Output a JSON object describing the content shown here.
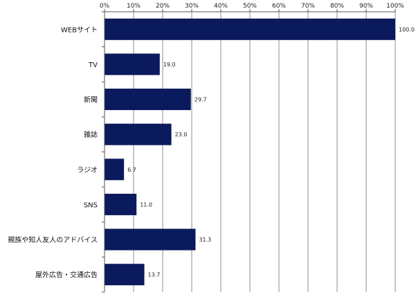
{
  "chart_data": {
    "type": "bar",
    "orientation": "horizontal",
    "categories": [
      "WEBサイト",
      "TV",
      "新聞",
      "雑誌",
      "ラジオ",
      "SNS",
      "親族や知人友人のアドバイス",
      "屋外広告・交通広告"
    ],
    "values": [
      100.0,
      19.0,
      29.7,
      23.0,
      6.7,
      11.0,
      31.3,
      13.7
    ],
    "value_labels": [
      "100.0",
      "19.0",
      "29.7",
      "23.0",
      "6.7",
      "11.0",
      "31.3",
      "13.7"
    ],
    "xlim": [
      0,
      100
    ],
    "x_ticks": [
      "0%",
      "10%",
      "20%",
      "30%",
      "40%",
      "50%",
      "60%",
      "70%",
      "80%",
      "90%",
      "100%"
    ],
    "x_axis_position": "top",
    "grid": true,
    "legend": "none",
    "bar_color": "#0b1a5c",
    "title": "",
    "xlabel": "",
    "ylabel": ""
  }
}
